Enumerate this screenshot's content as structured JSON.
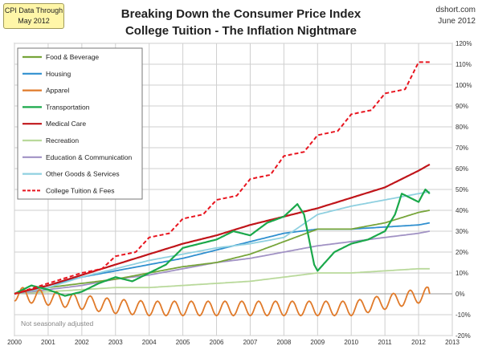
{
  "cpi_box": {
    "line1": "CPI Data Through",
    "line2": "May 2012"
  },
  "title_line1": "Breaking Down the Consumer Price Index",
  "title_line2": "College Tuition - The Inflation Nightmare",
  "source_line1": "dshort.com",
  "source_line2": "June 2012",
  "note": "Not seasonally adjusted",
  "colors": {
    "food": "#77a53a",
    "housing": "#2f8fcf",
    "apparel": "#e07a2a",
    "transportation": "#1aa84a",
    "medical": "#c0151a",
    "recreation": "#b9d99b",
    "education": "#a192c4",
    "other": "#8fd0e0",
    "tuition": "#e8141e",
    "grid": "#cfcfcf",
    "background": "#ffffff",
    "cpi_box": "#fff6a8"
  },
  "chart_data": {
    "type": "line",
    "title": "Breaking Down the Consumer Price Index College Tuition - The Inflation Nightmare",
    "xlabel": "",
    "ylabel": "",
    "xlim": [
      2000,
      2013
    ],
    "ylim": [
      -20,
      120
    ],
    "x_ticks": [
      "2000",
      "2001",
      "2002",
      "2003",
      "2004",
      "2005",
      "2006",
      "2007",
      "2008",
      "2009",
      "2010",
      "2011",
      "2012",
      "2013"
    ],
    "y_ticks": [
      "-20%",
      "-10%",
      "0%",
      "10%",
      "20%",
      "30%",
      "40%",
      "50%",
      "60%",
      "70%",
      "80%",
      "90%",
      "100%",
      "110%",
      "120%"
    ],
    "grid": true,
    "legend_position": "upper-left",
    "series": [
      {
        "name": "Food & Beverage",
        "style": "solid",
        "x": [
          2000,
          2001,
          2002,
          2003,
          2004,
          2005,
          2006,
          2007,
          2008,
          2009,
          2010,
          2011,
          2012,
          2012.33
        ],
        "y": [
          0,
          3,
          5,
          7,
          10,
          13,
          15,
          19,
          25,
          31,
          31,
          34,
          39,
          40
        ]
      },
      {
        "name": "Housing",
        "style": "solid",
        "x": [
          2000,
          2001,
          2002,
          2003,
          2004,
          2005,
          2006,
          2007,
          2008,
          2009,
          2010,
          2011,
          2012,
          2012.33
        ],
        "y": [
          0,
          4,
          8,
          11,
          14,
          17,
          21,
          25,
          29,
          31,
          31,
          32,
          33,
          34
        ]
      },
      {
        "name": "Apparel",
        "style": "solid",
        "seasonal": true,
        "x": [
          2000,
          2001,
          2002,
          2003,
          2004,
          2005,
          2006,
          2007,
          2008,
          2009,
          2010,
          2011,
          2012,
          2012.33
        ],
        "y": [
          0,
          -2,
          -4,
          -6,
          -7,
          -7,
          -7,
          -7,
          -7,
          -7,
          -7,
          -4,
          -1,
          0
        ]
      },
      {
        "name": "Transportation",
        "style": "solid",
        "x": [
          2000,
          2000.5,
          2001,
          2001.5,
          2002,
          2002.5,
          2003,
          2003.5,
          2004,
          2004.5,
          2005,
          2005.5,
          2006,
          2006.5,
          2007,
          2007.5,
          2008,
          2008.4,
          2008.6,
          2008.9,
          2009,
          2009.5,
          2010,
          2010.5,
          2011,
          2011.3,
          2011.5,
          2012,
          2012.2,
          2012.33
        ],
        "y": [
          0,
          4,
          2,
          -1,
          1,
          5,
          8,
          6,
          10,
          14,
          22,
          24,
          26,
          30,
          28,
          34,
          37,
          43,
          38,
          14,
          11,
          20,
          24,
          26,
          30,
          38,
          48,
          44,
          50,
          48
        ]
      },
      {
        "name": "Medical Care",
        "style": "solid",
        "x": [
          2000,
          2001,
          2002,
          2003,
          2004,
          2005,
          2006,
          2007,
          2008,
          2009,
          2010,
          2011,
          2012,
          2012.33
        ],
        "y": [
          0,
          4,
          9,
          14,
          19,
          24,
          28,
          33,
          37,
          41,
          46,
          51,
          59,
          62
        ]
      },
      {
        "name": "Recreation",
        "style": "solid",
        "x": [
          2000,
          2001,
          2002,
          2003,
          2004,
          2005,
          2006,
          2007,
          2008,
          2009,
          2010,
          2011,
          2012,
          2012.33
        ],
        "y": [
          0,
          1,
          2,
          3,
          3,
          4,
          5,
          6,
          8,
          10,
          10,
          11,
          12,
          12
        ]
      },
      {
        "name": "Education & Communication",
        "style": "solid",
        "x": [
          2000,
          2001,
          2002,
          2003,
          2004,
          2005,
          2006,
          2007,
          2008,
          2009,
          2010,
          2011,
          2012,
          2012.33
        ],
        "y": [
          0,
          2,
          4,
          7,
          9,
          12,
          15,
          17,
          20,
          23,
          25,
          27,
          29,
          30
        ]
      },
      {
        "name": "Other Goods & Services",
        "style": "solid",
        "x": [
          2000,
          2001,
          2002,
          2003,
          2004,
          2005,
          2006,
          2007,
          2008,
          2009,
          2010,
          2011,
          2012,
          2012.33
        ],
        "y": [
          0,
          3,
          8,
          12,
          16,
          19,
          22,
          24,
          27,
          38,
          42,
          45,
          48,
          49
        ]
      },
      {
        "name": "College Tuition & Fees",
        "style": "dashed",
        "x": [
          2000,
          2001,
          2002,
          2002.6,
          2003,
          2003.6,
          2004,
          2004.6,
          2005,
          2005.6,
          2006,
          2006.6,
          2007,
          2007.6,
          2008,
          2008.6,
          2009,
          2009.6,
          2010,
          2010.6,
          2011,
          2011.6,
          2012,
          2012.33
        ],
        "y": [
          0,
          5,
          10,
          12,
          18,
          20,
          27,
          29,
          36,
          38,
          45,
          47,
          55,
          57,
          66,
          68,
          76,
          78,
          86,
          88,
          96,
          98,
          111,
          111
        ]
      }
    ]
  }
}
